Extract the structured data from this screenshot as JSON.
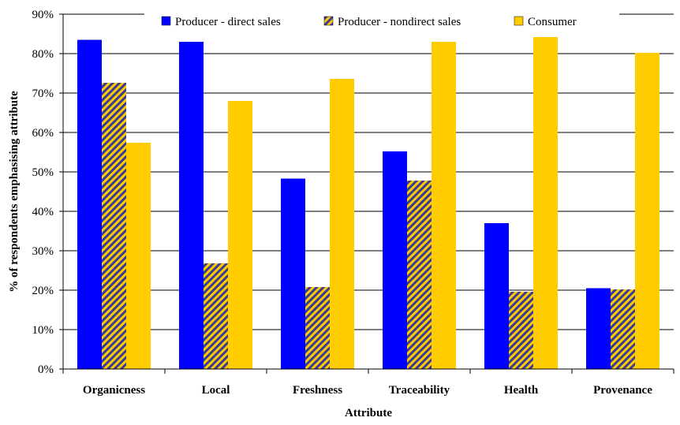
{
  "chart_data": {
    "type": "bar",
    "title": "",
    "xlabel": "Attribute",
    "ylabel": "% of respondents emphasising attribute",
    "ylim": [
      0,
      90
    ],
    "yticks": [
      "0%",
      "10%",
      "20%",
      "30%",
      "40%",
      "50%",
      "60%",
      "70%",
      "80%",
      "90%"
    ],
    "ytick_values": [
      0,
      10,
      20,
      30,
      40,
      50,
      60,
      70,
      80,
      90
    ],
    "grid": true,
    "legend_position": "top",
    "categories": [
      "Organicness",
      "Local",
      "Freshness",
      "Traceability",
      "Health",
      "Provenance"
    ],
    "series": [
      {
        "name": "Producer - direct sales",
        "color": "#0000ff",
        "pattern": "solid",
        "values": [
          83.5,
          83.0,
          48.3,
          55.2,
          37.0,
          20.5
        ]
      },
      {
        "name": "Producer - nondirect sales",
        "color": "#5f5f9e",
        "pattern": "diagonal-hatch-blue-gold",
        "values": [
          72.6,
          26.8,
          20.8,
          47.8,
          19.6,
          20.2
        ]
      },
      {
        "name": "Consumer",
        "color": "#ffcc00",
        "pattern": "solid",
        "values": [
          57.4,
          68.0,
          73.6,
          83.0,
          84.2,
          80.2
        ]
      }
    ]
  }
}
